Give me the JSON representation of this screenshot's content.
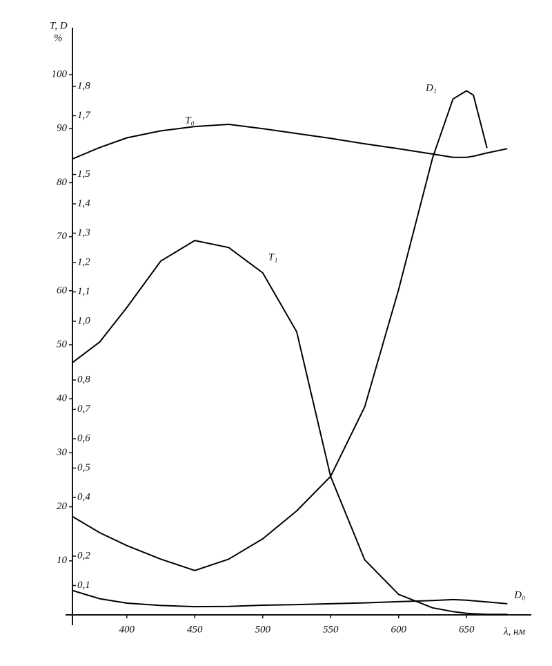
{
  "chart_data": {
    "type": "line",
    "ylabel": "T, D",
    "yunit": "%",
    "xlabel": "λ, нм",
    "x": [
      360,
      380,
      400,
      425,
      450,
      475,
      500,
      525,
      550,
      575,
      600,
      625,
      640,
      650,
      655,
      665,
      680
    ],
    "xlim": [
      360,
      690
    ],
    "xticks": [
      400,
      450,
      500,
      550,
      600,
      650
    ],
    "ylim": [
      0,
      108.7
    ],
    "yticks": [
      10,
      20,
      30,
      40,
      50,
      60,
      70,
      80,
      90,
      100
    ],
    "y2lim": [
      0,
      2
    ],
    "y2ticks": [
      {
        "value": 0.1,
        "label": "0,1"
      },
      {
        "value": 0.2,
        "label": "0,2"
      },
      {
        "value": 0.4,
        "label": "0,4"
      },
      {
        "value": 0.5,
        "label": "0,5"
      },
      {
        "value": 0.6,
        "label": "0,6"
      },
      {
        "value": 0.7,
        "label": "0,7"
      },
      {
        "value": 0.8,
        "label": "0,8"
      },
      {
        "value": 1.0,
        "label": "1,0"
      },
      {
        "value": 1.1,
        "label": "1,1"
      },
      {
        "value": 1.2,
        "label": "1,2"
      },
      {
        "value": 1.3,
        "label": "1,3"
      },
      {
        "value": 1.4,
        "label": "1,4"
      },
      {
        "value": 1.5,
        "label": "1,5"
      },
      {
        "value": 1.7,
        "label": "1,7"
      },
      {
        "value": 1.8,
        "label": "1,8"
      }
    ],
    "series": [
      {
        "name": "T₀",
        "color": "#000000",
        "values": [
          84.4,
          86.5,
          88.3,
          89.6,
          90.4,
          90.8,
          90.0,
          89.1,
          88.2,
          87.2,
          86.3,
          85.3,
          84.7,
          84.7,
          84.9,
          85.5,
          86.3
        ]
      },
      {
        "name": "T₁",
        "color": "#000000",
        "values": [
          46.7,
          50.5,
          56.9,
          65.5,
          69.3,
          68.0,
          63.3,
          52.4,
          25.6,
          10.2,
          3.8,
          1.3,
          0.6,
          0.3,
          0.2,
          0.1,
          0.1
        ]
      },
      {
        "name": "D₁",
        "color": "#000000",
        "axis": "y2",
        "values": [
          0.335,
          0.28,
          0.236,
          0.19,
          0.151,
          0.19,
          0.259,
          0.354,
          0.472,
          0.708,
          1.108,
          1.557,
          1.757,
          1.785,
          1.77,
          1.59,
          null
        ]
      },
      {
        "name": "D₀",
        "color": "#000000",
        "axis": "y2",
        "values": [
          0.083,
          0.055,
          0.04,
          0.032,
          0.028,
          0.029,
          0.033,
          0.035,
          0.038,
          0.041,
          0.045,
          0.049,
          0.052,
          0.05,
          0.048,
          0.044,
          0.038
        ]
      }
    ]
  }
}
